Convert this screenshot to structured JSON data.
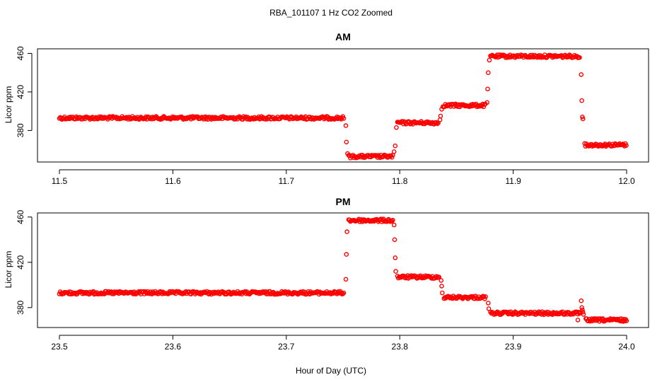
{
  "page_title": "RBA_101107  1 Hz CO2 Zoomed",
  "xlabel": "Hour of Day (UTC)",
  "colors": {
    "points": "#ff0000",
    "axes": "#000000",
    "background": "#ffffff"
  },
  "chart_data": [
    {
      "type": "scatter",
      "title": "AM",
      "ylabel": "Licor ppm",
      "xlim": [
        11.5,
        12.0
      ],
      "ylim": [
        348,
        464
      ],
      "x_ticks": [
        "11.5",
        "11.6",
        "11.7",
        "11.8",
        "11.9",
        "12.0"
      ],
      "y_ticks": [
        "380",
        "420",
        "460"
      ],
      "grid": false,
      "marker": "open-circle",
      "segments": [
        {
          "x_start": 11.5,
          "x_end": 11.751,
          "y": 393
        },
        {
          "x_start": 11.755,
          "x_end": 11.794,
          "y": 353
        },
        {
          "x_start": 11.798,
          "x_end": 11.834,
          "y": 388
        },
        {
          "x_start": 11.838,
          "x_end": 11.876,
          "y": 406
        },
        {
          "x_start": 11.88,
          "x_end": 11.959,
          "y": 457
        },
        {
          "x_start": 11.963,
          "x_end": 12.0,
          "y": 365
        }
      ],
      "transition_points": [
        {
          "x": 11.7525,
          "y": 385
        },
        {
          "x": 11.753,
          "y": 368
        },
        {
          "x": 11.754,
          "y": 356
        },
        {
          "x": 11.795,
          "y": 358
        },
        {
          "x": 11.796,
          "y": 364
        },
        {
          "x": 11.797,
          "y": 383
        },
        {
          "x": 11.8355,
          "y": 391
        },
        {
          "x": 11.836,
          "y": 395
        },
        {
          "x": 11.837,
          "y": 402
        },
        {
          "x": 11.877,
          "y": 409
        },
        {
          "x": 11.8775,
          "y": 423
        },
        {
          "x": 11.878,
          "y": 440
        },
        {
          "x": 11.879,
          "y": 453
        },
        {
          "x": 11.96,
          "y": 438
        },
        {
          "x": 11.9605,
          "y": 411
        },
        {
          "x": 11.961,
          "y": 394
        },
        {
          "x": 11.9615,
          "y": 392
        }
      ]
    },
    {
      "type": "scatter",
      "title": "PM",
      "ylabel": "Licor ppm",
      "xlim": [
        23.5,
        24.0
      ],
      "ylim": [
        363,
        463
      ],
      "x_ticks": [
        "23.5",
        "23.6",
        "23.7",
        "23.8",
        "23.9",
        "24.0"
      ],
      "y_ticks": [
        "380",
        "420",
        "460"
      ],
      "grid": false,
      "marker": "open-circle",
      "segments": [
        {
          "x_start": 23.5,
          "x_end": 23.751,
          "y": 393
        },
        {
          "x_start": 23.755,
          "x_end": 23.794,
          "y": 457
        },
        {
          "x_start": 23.798,
          "x_end": 23.835,
          "y": 407
        },
        {
          "x_start": 23.839,
          "x_end": 23.876,
          "y": 389
        },
        {
          "x_start": 23.88,
          "x_end": 23.96,
          "y": 375
        },
        {
          "x_start": 23.964,
          "x_end": 24.0,
          "y": 369
        }
      ],
      "transition_points": [
        {
          "x": 23.7525,
          "y": 405
        },
        {
          "x": 23.753,
          "y": 427
        },
        {
          "x": 23.7535,
          "y": 447
        },
        {
          "x": 23.795,
          "y": 453
        },
        {
          "x": 23.7955,
          "y": 440
        },
        {
          "x": 23.796,
          "y": 424
        },
        {
          "x": 23.7965,
          "y": 412
        },
        {
          "x": 23.8365,
          "y": 404
        },
        {
          "x": 23.837,
          "y": 399
        },
        {
          "x": 23.8375,
          "y": 393
        },
        {
          "x": 23.878,
          "y": 384
        },
        {
          "x": 23.8785,
          "y": 379
        },
        {
          "x": 23.96,
          "y": 386
        },
        {
          "x": 23.9605,
          "y": 380
        },
        {
          "x": 23.961,
          "y": 378
        },
        {
          "x": 23.9615,
          "y": 376
        },
        {
          "x": 23.962,
          "y": 374
        },
        {
          "x": 23.957,
          "y": 369
        }
      ]
    }
  ]
}
